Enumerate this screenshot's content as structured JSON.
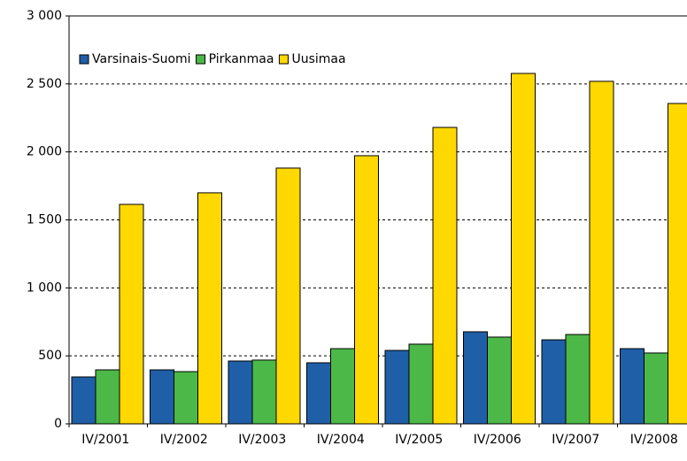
{
  "chart_data": {
    "type": "bar",
    "categories": [
      "IV/2001",
      "IV/2002",
      "IV/2003",
      "IV/2004",
      "IV/2005",
      "IV/2006",
      "IV/2007",
      "IV/2008"
    ],
    "series": [
      {
        "name": "Varsinais-Suomi",
        "color": "#1f5fa8",
        "values": [
          345,
          397,
          462,
          449,
          540,
          677,
          618,
          553
        ]
      },
      {
        "name": "Pirkanmaa",
        "color": "#4cb848",
        "values": [
          397,
          384,
          469,
          553,
          586,
          638,
          657,
          521
        ]
      },
      {
        "name": "Uusimaa",
        "color": "#ffd800",
        "values": [
          1614,
          1699,
          1881,
          1972,
          2180,
          2577,
          2519,
          2356
        ]
      }
    ],
    "ylim": [
      0,
      3000
    ],
    "yticks": [
      0,
      500,
      {
        "value": 1000,
        "label": "1 000"
      },
      {
        "value": 1500,
        "label": "1 500"
      },
      {
        "value": 2000,
        "label": "2 000"
      },
      {
        "value": 2500,
        "label": "2 500"
      },
      {
        "value": 3000,
        "label": "3 000"
      }
    ],
    "grid": true,
    "legend": "top-left"
  }
}
